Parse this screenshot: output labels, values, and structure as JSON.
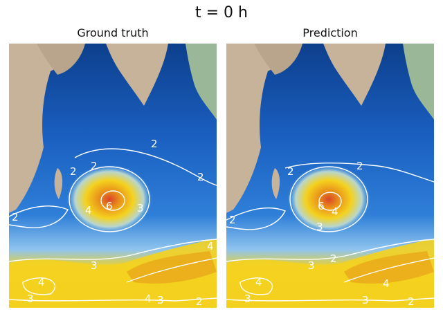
{
  "figure": {
    "title": "t = 0 h"
  },
  "panels": [
    {
      "id": "ground-truth",
      "title": "Ground truth",
      "contour_labels": [
        "2",
        "2",
        "2",
        "4",
        "6",
        "3",
        "2",
        "3",
        "4",
        "3",
        "4",
        "4",
        "3",
        "2",
        "2"
      ]
    },
    {
      "id": "prediction",
      "title": "Prediction",
      "contour_labels": [
        "2",
        "2",
        "4",
        "6",
        "3",
        "2",
        "3",
        "3",
        "4",
        "4",
        "3",
        "2",
        "2"
      ]
    }
  ],
  "colors": {
    "land": "#c7b39a",
    "land_green": "#9ab898",
    "ocean_dark": "#0d3f8c",
    "ocean_mid": "#1a5fc0",
    "ocean_light": "#4a9ce8",
    "ocean_pale": "#8fc4ee",
    "yellow": "#f4d21f",
    "orange": "#e9921a",
    "red": "#d8452a",
    "contour": "#ffffff"
  }
}
